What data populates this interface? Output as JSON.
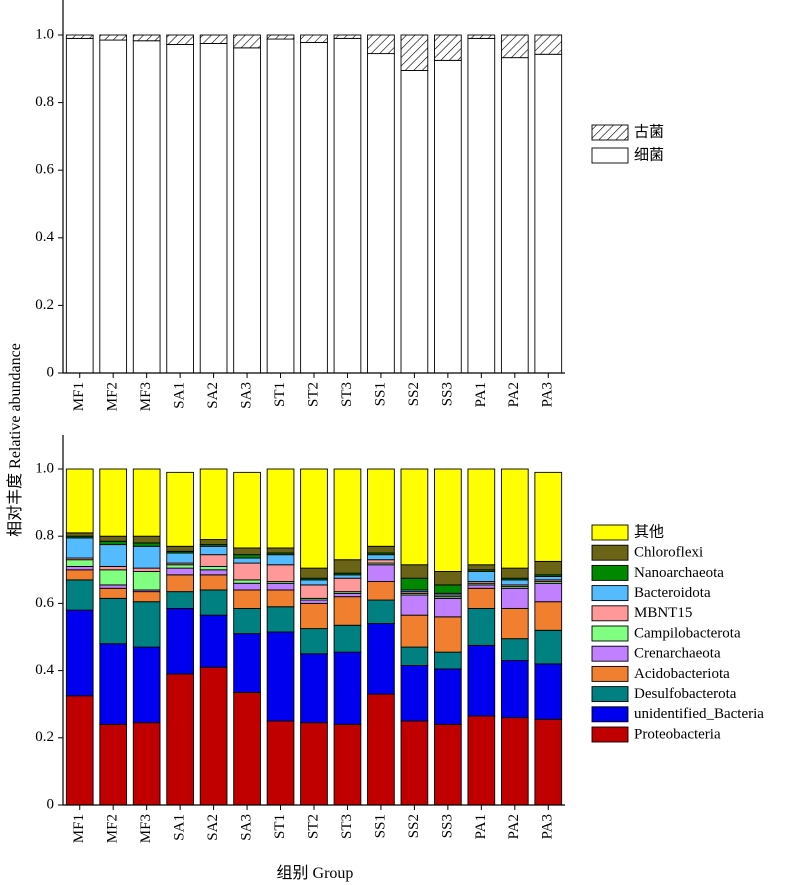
{
  "figure": {
    "ylabel": "相对丰度 Relative abundance",
    "xlabel": "组别 Group"
  },
  "chart_data": [
    {
      "type": "bar",
      "stacked": true,
      "categories": [
        "MF1",
        "MF2",
        "MF3",
        "SA1",
        "SA2",
        "SA3",
        "ST1",
        "ST2",
        "ST3",
        "SS1",
        "SS2",
        "SS3",
        "PA1",
        "PA2",
        "PA3"
      ],
      "ylim": [
        0,
        1.0
      ],
      "yticks": [
        "0",
        "0.2",
        "0.4",
        "0.6",
        "0.8",
        "1.0"
      ],
      "legend_position": "right",
      "series": [
        {
          "name": "细菌",
          "pattern": "plain",
          "color": "#ffffff",
          "values": [
            0.99,
            0.985,
            0.983,
            0.972,
            0.975,
            0.962,
            0.988,
            0.978,
            0.99,
            0.945,
            0.895,
            0.925,
            0.99,
            0.933,
            0.943
          ]
        },
        {
          "name": "古菌",
          "pattern": "hatch",
          "color": "#ffffff",
          "values": [
            0.01,
            0.015,
            0.017,
            0.028,
            0.025,
            0.038,
            0.012,
            0.022,
            0.01,
            0.055,
            0.105,
            0.075,
            0.01,
            0.067,
            0.057
          ]
        }
      ]
    },
    {
      "type": "bar",
      "stacked": true,
      "categories": [
        "MF1",
        "MF2",
        "MF3",
        "SA1",
        "SA2",
        "SA3",
        "ST1",
        "ST2",
        "ST3",
        "SS1",
        "SS2",
        "SS3",
        "PA1",
        "PA2",
        "PA3"
      ],
      "ylim": [
        0,
        1.0
      ],
      "yticks": [
        "0",
        "0.2",
        "0.4",
        "0.6",
        "0.8",
        "1.0"
      ],
      "legend_position": "right",
      "series": [
        {
          "name": "Proteobacteria",
          "color": "#c00000",
          "values": [
            0.325,
            0.24,
            0.245,
            0.39,
            0.41,
            0.335,
            0.25,
            0.245,
            0.24,
            0.33,
            0.25,
            0.24,
            0.265,
            0.26,
            0.255
          ]
        },
        {
          "name": "unidentified_Bacteria",
          "color": "#0000ee",
          "values": [
            0.255,
            0.24,
            0.225,
            0.195,
            0.155,
            0.175,
            0.265,
            0.205,
            0.215,
            0.21,
            0.165,
            0.165,
            0.21,
            0.17,
            0.165
          ]
        },
        {
          "name": "Desulfobacterota",
          "color": "#008080",
          "values": [
            0.09,
            0.135,
            0.135,
            0.05,
            0.075,
            0.075,
            0.075,
            0.075,
            0.08,
            0.07,
            0.055,
            0.05,
            0.11,
            0.065,
            0.1
          ]
        },
        {
          "name": "Acidobacteriota",
          "color": "#f08030",
          "values": [
            0.03,
            0.03,
            0.03,
            0.05,
            0.045,
            0.055,
            0.05,
            0.075,
            0.085,
            0.055,
            0.095,
            0.105,
            0.06,
            0.09,
            0.085
          ]
        },
        {
          "name": "Crenarchaeota",
          "color": "#c080ff",
          "values": [
            0.01,
            0.01,
            0.005,
            0.02,
            0.015,
            0.02,
            0.02,
            0.01,
            0.01,
            0.05,
            0.06,
            0.055,
            0.01,
            0.06,
            0.055
          ]
        },
        {
          "name": "Campilobacterota",
          "color": "#80ff80",
          "values": [
            0.02,
            0.045,
            0.055,
            0.01,
            0.01,
            0.01,
            0.005,
            0.005,
            0.005,
            0.005,
            0.005,
            0.005,
            0.005,
            0.005,
            0.005
          ]
        },
        {
          "name": "MBNT15",
          "color": "#ff9999",
          "values": [
            0.005,
            0.01,
            0.01,
            0.005,
            0.035,
            0.05,
            0.05,
            0.04,
            0.04,
            0.01,
            0.005,
            0.005,
            0.005,
            0.005,
            0.005
          ]
        },
        {
          "name": "Bacteroidota",
          "color": "#55bbff",
          "values": [
            0.06,
            0.065,
            0.065,
            0.03,
            0.025,
            0.015,
            0.03,
            0.015,
            0.01,
            0.015,
            0.005,
            0.005,
            0.03,
            0.015,
            0.01
          ]
        },
        {
          "name": "Nanoarchaeota",
          "color": "#008800",
          "values": [
            0.005,
            0.01,
            0.01,
            0.005,
            0.005,
            0.01,
            0.005,
            0.005,
            0.005,
            0.005,
            0.035,
            0.025,
            0.005,
            0.005,
            0.005
          ]
        },
        {
          "name": "Chloroflexi",
          "color": "#6b6315",
          "values": [
            0.01,
            0.015,
            0.02,
            0.015,
            0.015,
            0.02,
            0.015,
            0.03,
            0.04,
            0.02,
            0.04,
            0.04,
            0.015,
            0.03,
            0.04
          ]
        },
        {
          "name": "其他",
          "color": "#ffff00",
          "values": [
            0.19,
            0.2,
            0.2,
            0.22,
            0.21,
            0.225,
            0.235,
            0.295,
            0.27,
            0.23,
            0.285,
            0.305,
            0.285,
            0.295,
            0.265
          ]
        }
      ]
    }
  ]
}
